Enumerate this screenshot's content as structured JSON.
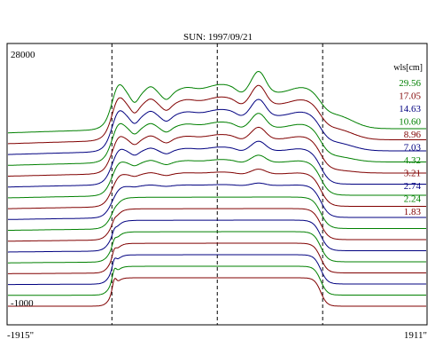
{
  "chart_data": {
    "type": "line",
    "title": "SUN: 1997/09/21",
    "xlabel": "",
    "ylabel": "",
    "x_tick_labels": [
      "-1915\"",
      "1911\""
    ],
    "y_tick_labels": [
      "28000",
      "-1000"
    ],
    "xlim": [
      -1915,
      1911
    ],
    "ylim": [
      -1000,
      28000
    ],
    "grid": false,
    "vertical_markers": [
      -960,
      0,
      960
    ],
    "legend": {
      "title": "wls[cm]",
      "placement": "top-right"
    },
    "colors": {
      "green": "#008000",
      "red": "#800000",
      "blue": "#000080",
      "axes": "#000000",
      "marker_lines": "#000000"
    },
    "series": [
      {
        "name": "29.56",
        "color": "green"
      },
      {
        "name": "17.05",
        "color": "red"
      },
      {
        "name": "14.63",
        "color": "blue"
      },
      {
        "name": "10.60",
        "color": "green"
      },
      {
        "name": "8.96",
        "color": "red"
      },
      {
        "name": "7.03",
        "color": "blue"
      },
      {
        "name": "4.32",
        "color": "green"
      },
      {
        "name": "3.21",
        "color": "red"
      },
      {
        "name": "2.74",
        "color": "blue"
      },
      {
        "name": "2.24",
        "color": "green"
      },
      {
        "name": "1.83",
        "color": "red"
      },
      {
        "name": "",
        "color": "blue"
      },
      {
        "name": "",
        "color": "green"
      },
      {
        "name": "",
        "color": "red"
      },
      {
        "name": "",
        "color": "blue"
      },
      {
        "name": "",
        "color": "green"
      },
      {
        "name": "",
        "color": "red"
      }
    ]
  }
}
